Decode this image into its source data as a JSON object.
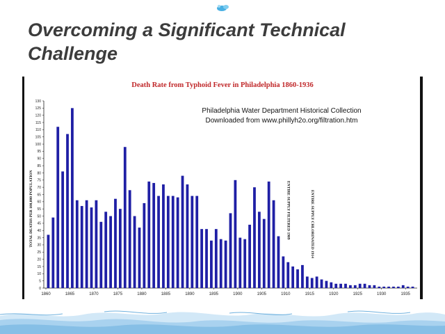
{
  "slide": {
    "title": "Overcoming a Significant Technical Challenge"
  },
  "colors": {
    "bar": "#1f1fa5",
    "chart_title": "#c0282a",
    "frame": "#111111",
    "water": "#b5d7ef"
  },
  "chart_data": {
    "type": "bar",
    "title": "Death Rate from Typhoid Fever in Philadelphia 1860-1936",
    "xlabel": "",
    "ylabel": "TOTAL DEATHS PER 100,000 POPULATION",
    "ylim": [
      0,
      130
    ],
    "yticks": [
      0,
      5,
      10,
      15,
      20,
      25,
      30,
      35,
      40,
      45,
      50,
      55,
      60,
      65,
      70,
      75,
      80,
      85,
      90,
      95,
      100,
      105,
      110,
      115,
      120,
      125,
      130
    ],
    "xticks": [
      1860,
      1865,
      1870,
      1875,
      1880,
      1885,
      1890,
      1895,
      1900,
      1905,
      1910,
      1915,
      1920,
      1925,
      1930,
      1935
    ],
    "grid": false,
    "legend": "none",
    "x": [
      1860,
      1861,
      1862,
      1863,
      1864,
      1865,
      1866,
      1867,
      1868,
      1869,
      1870,
      1871,
      1872,
      1873,
      1874,
      1875,
      1876,
      1877,
      1878,
      1879,
      1880,
      1881,
      1882,
      1883,
      1884,
      1885,
      1886,
      1887,
      1888,
      1889,
      1890,
      1891,
      1892,
      1893,
      1894,
      1895,
      1896,
      1897,
      1898,
      1899,
      1900,
      1901,
      1902,
      1903,
      1904,
      1905,
      1906,
      1907,
      1908,
      1909,
      1910,
      1911,
      1912,
      1913,
      1914,
      1915,
      1916,
      1917,
      1918,
      1919,
      1920,
      1921,
      1922,
      1923,
      1924,
      1925,
      1926,
      1927,
      1928,
      1929,
      1930,
      1931,
      1932,
      1933,
      1934,
      1935,
      1936
    ],
    "values": [
      37,
      49,
      112,
      81,
      107,
      125,
      61,
      57,
      61,
      56,
      61,
      46,
      53,
      50,
      62,
      55,
      98,
      68,
      50,
      42,
      59,
      74,
      73,
      64,
      72,
      64,
      64,
      63,
      78,
      72,
      64,
      64,
      41,
      41,
      33,
      41,
      34,
      33,
      52,
      75,
      35,
      34,
      44,
      70,
      53,
      48,
      74,
      61,
      36,
      22,
      18,
      15,
      13,
      16,
      8,
      7,
      8,
      6,
      5,
      4,
      3,
      3,
      3,
      2,
      2,
      3,
      3,
      2,
      2,
      1,
      1,
      1,
      1,
      1,
      2,
      1,
      1
    ],
    "annotations": [
      {
        "text": "Philadelphia Water Department Historical Collection"
      },
      {
        "text": "Downloaded from www.phillyh2o.org/filtration.htm"
      },
      {
        "text": "ENTIRE SUPPLY FILTERED 1909",
        "x": 1909
      },
      {
        "text": "ENTIRE SUPPLY CHLORINATED 1914",
        "x": 1914
      }
    ]
  }
}
